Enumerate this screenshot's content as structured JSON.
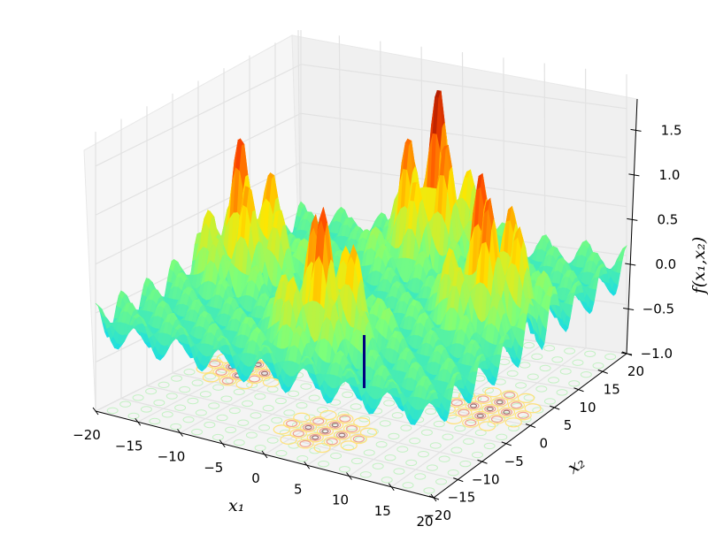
{
  "chart_data": {
    "type": "surface3d",
    "title": "",
    "colormap": "jet",
    "colormap_stops": [
      "#00007f",
      "#0000ff",
      "#00d4ff",
      "#7dff7a",
      "#ffe600",
      "#ff4800",
      "#7f0000"
    ],
    "function_description": "Oscillatory 2D surface with four clusters of tall peaks and a single sharp narrow minimum near the center; contour lines projected onto the floor plane",
    "x_axis": {
      "label": "x_1",
      "label_display": "x₁",
      "range": [
        -20,
        20
      ],
      "ticks": [
        -20,
        -15,
        -10,
        -5,
        0,
        5,
        10,
        15,
        20
      ],
      "tick_labels": [
        "−20",
        "−15",
        "−10",
        "−5",
        "0",
        "5",
        "10",
        "15",
        "20"
      ]
    },
    "y_axis": {
      "label": "x_2",
      "label_display": "x₂",
      "range": [
        -20,
        20
      ],
      "ticks": [
        -20,
        -15,
        -10,
        -5,
        0,
        5,
        10,
        15,
        20
      ],
      "tick_labels": [
        "−20",
        "−15",
        "−10",
        "−5",
        "0",
        "5",
        "10",
        "15",
        "20"
      ]
    },
    "z_axis": {
      "label": "f(x_1,x_2)",
      "label_display": "f(x₁,x₂)",
      "range": [
        -1.0,
        1.85
      ],
      "ticks": [
        -1.0,
        -0.5,
        0.0,
        0.5,
        1.0,
        1.5
      ],
      "tick_labels": [
        "−1.0",
        "−0.5",
        "0.0",
        "0.5",
        "1.0",
        "1.5"
      ]
    },
    "peak_clusters": [
      {
        "name": "back-center",
        "approx_max_z": 1.85
      },
      {
        "name": "left",
        "approx_max_z": 1.5
      },
      {
        "name": "right",
        "approx_max_z": 1.6
      },
      {
        "name": "front-center",
        "approx_max_z": 1.5
      }
    ],
    "global_minimum": {
      "x1": 0,
      "x2": 0,
      "approx_z": -1.0
    },
    "surface_baseline_z": 0.0,
    "floor_contours": true,
    "grid": true,
    "pane_color": "#f2f2f2",
    "grid_color": "#e6e6e6"
  }
}
